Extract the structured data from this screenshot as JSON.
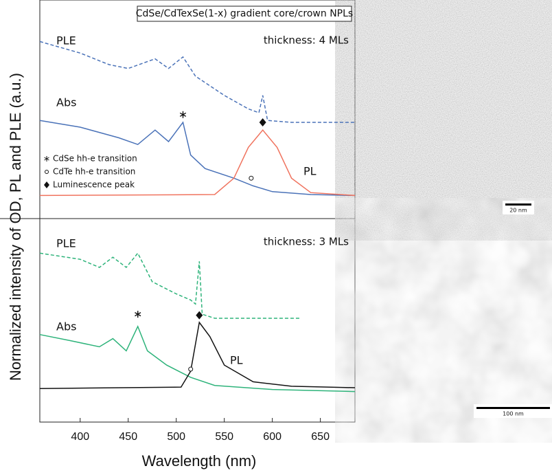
{
  "chart_data": {
    "type": "line",
    "title": "CdSe/CdTexSe(1-x) gradient core/crown NPLs",
    "xlabel": "Wavelength (nm)",
    "ylabel": "Normalized intensity of OD, PL and PLE (a.u.)",
    "xlim": [
      358,
      686
    ],
    "xticks": [
      400,
      450,
      500,
      550,
      600,
      650
    ],
    "legend": [
      "CdSe hh-e transition",
      "CdTe hh-e transition",
      "Luminescence peak"
    ],
    "panels": [
      {
        "label": "thickness: 4 MLs",
        "ylim": [
          0,
          10
        ],
        "series": [
          {
            "name": "PLE",
            "color": "#4a72b8",
            "dashed": true,
            "x": [
              358,
              400,
              430,
              450,
              478,
              492,
              507,
              520,
              550,
              575,
              586,
              590,
              595,
              620,
              686
            ],
            "values": [
              9.2,
              8.6,
              8.0,
              7.8,
              8.3,
              7.8,
              8.4,
              7.4,
              6.4,
              5.7,
              5.5,
              6.4,
              5.1,
              5.0,
              5.0
            ]
          },
          {
            "name": "Abs",
            "color": "#4a72b8",
            "dashed": false,
            "x": [
              358,
              400,
              440,
              460,
              478,
              492,
              507,
              515,
              530,
              560,
              580,
              600,
              640,
              686
            ],
            "values": [
              5.1,
              4.75,
              4.2,
              3.85,
              4.6,
              4.0,
              5.0,
              3.3,
              2.6,
              2.1,
              1.7,
              1.4,
              1.25,
              1.2
            ]
          },
          {
            "name": "PL",
            "color": "#f0735e",
            "dashed": false,
            "x": [
              358,
              540,
              560,
              575,
              590,
              605,
              620,
              640,
              686
            ],
            "values": [
              1.2,
              1.25,
              2.1,
              3.7,
              4.6,
              3.7,
              2.1,
              1.35,
              1.2
            ]
          }
        ],
        "markers": [
          {
            "kind": "asterisk",
            "x": 507,
            "y": 5.4
          },
          {
            "kind": "circle",
            "x": 578,
            "y": 2.1
          },
          {
            "kind": "diamond",
            "x": 590,
            "y": 5.0
          }
        ]
      },
      {
        "label": "thickness: 3 MLs",
        "ylim": [
          0,
          10
        ],
        "series": [
          {
            "name": "PLE",
            "color": "#2db37a",
            "dashed": true,
            "x": [
              358,
              400,
              420,
              434,
              448,
              460,
              475,
              500,
              515,
              520,
              524,
              527,
              540,
              630
            ],
            "values": [
              8.3,
              8.0,
              7.6,
              8.1,
              7.6,
              8.3,
              6.9,
              6.3,
              6.0,
              5.8,
              7.9,
              5.3,
              5.1,
              5.1
            ]
          },
          {
            "name": "Abs",
            "color": "#2db37a",
            "dashed": false,
            "x": [
              358,
              390,
              420,
              434,
              448,
              460,
              470,
              490,
              515,
              540,
              600,
              686
            ],
            "values": [
              4.3,
              4.0,
              3.7,
              4.1,
              3.5,
              4.7,
              3.5,
              2.8,
              2.2,
              1.8,
              1.6,
              1.5
            ]
          },
          {
            "name": "PL",
            "color": "#111111",
            "dashed": false,
            "x": [
              358,
              505,
              515,
              524,
              535,
              550,
              580,
              620,
              686
            ],
            "values": [
              1.65,
              1.72,
              2.5,
              4.9,
              4.2,
              2.8,
              1.98,
              1.76,
              1.69
            ]
          }
        ],
        "markers": [
          {
            "kind": "asterisk",
            "x": 460,
            "y": 5.3
          },
          {
            "kind": "circle",
            "x": 515,
            "y": 2.6
          },
          {
            "kind": "diamond",
            "x": 524,
            "y": 5.25
          }
        ]
      }
    ]
  },
  "images": [
    {
      "scale_bar": "20 nm"
    },
    {
      "scale_bar": "100 nm"
    }
  ]
}
